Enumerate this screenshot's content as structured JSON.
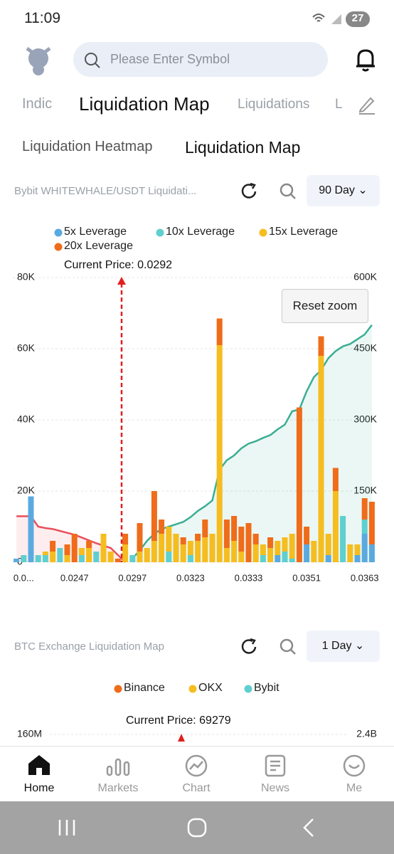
{
  "status_bar": {
    "time": "11:09",
    "battery": "27"
  },
  "header": {
    "search_placeholder": "Please Enter Symbol"
  },
  "tabs": [
    "Indic",
    "Liquidation Map",
    "Liquidations",
    "L"
  ],
  "subtabs": [
    "Liquidation Heatmap",
    "Liquidation Map"
  ],
  "chart_data": [
    {
      "type": "bar",
      "title": "Bybit WHITEWHALE/USDT Liquidati...",
      "range_label": "90 Day",
      "reset_label": "Reset zoom",
      "annotation": "Current Price: 0.0292",
      "stacked": true,
      "categories": [
        null,
        "0.0...",
        null,
        null,
        null,
        null,
        null,
        null,
        "0.0247",
        null,
        null,
        null,
        null,
        null,
        null,
        null,
        "0.0297",
        null,
        null,
        null,
        null,
        null,
        null,
        null,
        "0.0323",
        null,
        null,
        null,
        null,
        null,
        null,
        null,
        "0.0333",
        null,
        null,
        null,
        null,
        null,
        null,
        null,
        "0.0351",
        null,
        null,
        null,
        null,
        null,
        null,
        null,
        "0.0363",
        null
      ],
      "series": [
        {
          "name": "5x Leverage",
          "color": "#5aaae0",
          "values": [
            1000,
            0,
            18500,
            0,
            0,
            0,
            0,
            0,
            0,
            0,
            0,
            0,
            0,
            0,
            0,
            0,
            0,
            0,
            0,
            0,
            0,
            0,
            0,
            0,
            0,
            0,
            0,
            0,
            0,
            0,
            0,
            0,
            0,
            0,
            0,
            0,
            2000,
            0,
            0,
            0,
            5000,
            0,
            0,
            2000,
            0,
            0,
            0,
            2000,
            8000,
            5000
          ]
        },
        {
          "name": "10x Leverage",
          "color": "#5fcfcf",
          "values": [
            0,
            2000,
            0,
            2000,
            2000,
            0,
            4000,
            0,
            0,
            2000,
            0,
            3000,
            0,
            0,
            0,
            0,
            2000,
            0,
            0,
            0,
            0,
            3000,
            0,
            0,
            2000,
            0,
            0,
            0,
            0,
            0,
            0,
            0,
            0,
            0,
            2000,
            0,
            0,
            3000,
            1000,
            0,
            0,
            0,
            0,
            0,
            0,
            13000,
            0,
            0,
            4000,
            0
          ]
        },
        {
          "name": "15x Leverage",
          "color": "#f5bd1f",
          "values": [
            0,
            0,
            0,
            0,
            1000,
            3000,
            0,
            2000,
            0,
            2000,
            4000,
            0,
            8000,
            3000,
            0,
            5000,
            0,
            3000,
            4000,
            6000,
            8000,
            7000,
            8000,
            5000,
            4000,
            6000,
            7000,
            8000,
            61000,
            4000,
            6000,
            3000,
            0,
            5000,
            3000,
            4000,
            4000,
            4000,
            7000,
            0,
            0,
            6000,
            58000,
            6000,
            20000,
            0,
            5000,
            3000,
            0,
            0
          ]
        },
        {
          "name": "20x Leverage",
          "color": "#ef6c1a",
          "values": [
            0,
            0,
            0,
            0,
            0,
            3000,
            0,
            3000,
            8000,
            0,
            2000,
            0,
            0,
            0,
            1000,
            3000,
            0,
            8000,
            0,
            14000,
            4000,
            0,
            0,
            2000,
            0,
            2000,
            5000,
            0,
            7500,
            8000,
            7000,
            7000,
            11000,
            3000,
            0,
            3000,
            0,
            0,
            0,
            43500,
            5000,
            0,
            5500,
            0,
            6500,
            0,
            0,
            0,
            6000,
            12000
          ]
        }
      ],
      "lines": [
        {
          "color": "#e8505b",
          "axis": "y2",
          "values": [
            97000,
            97000,
            97000,
            75000,
            72000,
            70000,
            66000,
            62000,
            58000,
            52000,
            46000,
            40000,
            35000,
            30000,
            15000,
            0,
            null,
            null,
            null,
            null,
            null,
            null,
            null,
            null,
            null,
            null,
            null,
            null,
            null,
            null,
            null,
            null,
            null,
            null,
            null,
            null,
            null,
            null,
            null,
            null,
            null,
            null,
            null,
            null,
            null,
            null,
            null,
            null,
            null,
            null
          ]
        },
        {
          "color": "#3aae94",
          "axis": "y2",
          "values": [
            null,
            null,
            null,
            null,
            null,
            null,
            null,
            null,
            null,
            null,
            null,
            null,
            null,
            null,
            null,
            null,
            8000,
            25000,
            45000,
            60000,
            70000,
            75000,
            80000,
            85000,
            95000,
            108000,
            118000,
            130000,
            195000,
            215000,
            225000,
            240000,
            250000,
            255000,
            262000,
            268000,
            280000,
            290000,
            318000,
            322000,
            360000,
            390000,
            405000,
            430000,
            445000,
            455000,
            460000,
            470000,
            480000,
            500000
          ]
        }
      ],
      "ylim": [
        0,
        80000
      ],
      "yticks": [
        0,
        {
          "value": 20000,
          "label": "20K"
        },
        {
          "value": 40000,
          "label": "40K"
        },
        {
          "value": 60000,
          "label": "60K"
        },
        {
          "value": 80000,
          "label": "80K"
        }
      ],
      "y2lim": [
        0,
        600000
      ],
      "y2ticks": [
        {
          "value": 150000,
          "label": "150K"
        },
        {
          "value": 300000,
          "label": "300K"
        },
        {
          "value": 450000,
          "label": "450K"
        },
        {
          "value": 600000,
          "label": "600K"
        }
      ],
      "grid": true
    },
    {
      "type": "bar",
      "title": "BTC Exchange Liquidation Map",
      "range_label": "1 Day",
      "annotation": "Current Price: 69279",
      "series": [
        {
          "name": "Binance",
          "color": "#ef6c1a"
        },
        {
          "name": "OKX",
          "color": "#f5bd1f"
        },
        {
          "name": "Bybit",
          "color": "#5fcfcf"
        }
      ],
      "yticks": [
        {
          "value": 160000000,
          "label": "160M"
        }
      ],
      "y2ticks": [
        {
          "value": 2400000000,
          "label": "2.4B"
        }
      ]
    }
  ],
  "nav": [
    "Home",
    "Markets",
    "Chart",
    "News",
    "Me"
  ]
}
